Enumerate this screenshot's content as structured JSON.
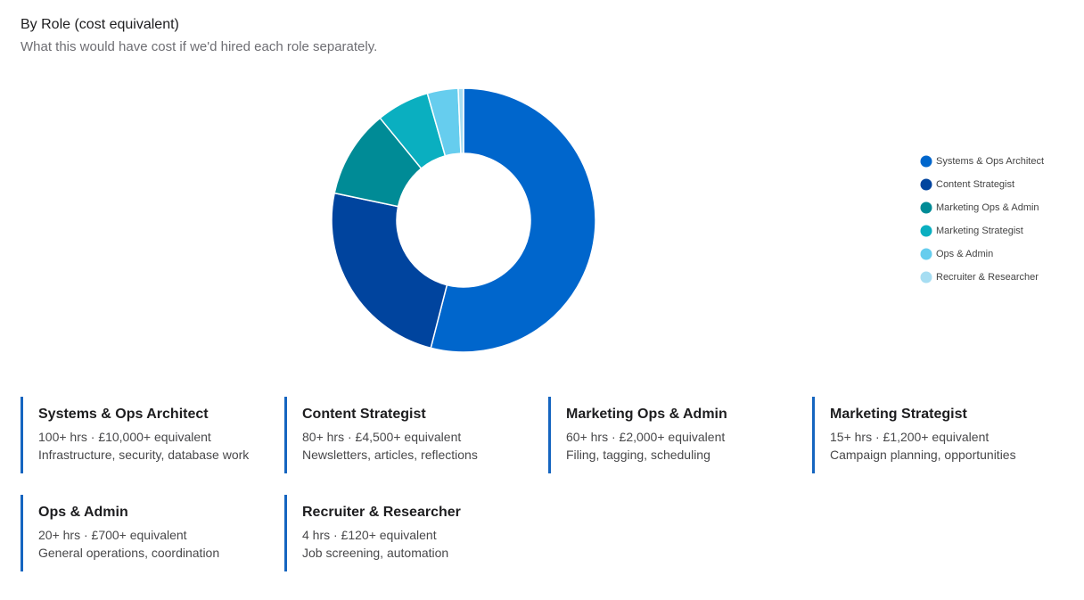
{
  "chart_data": {
    "type": "donut",
    "title": "By Role (cost equivalent)",
    "subtitle": "What this would have cost if we'd hired each role separately.",
    "categories": [
      "Systems & Ops Architect",
      "Content Strategist",
      "Marketing Ops & Admin",
      "Marketing Strategist",
      "Ops & Admin",
      "Recruiter & Researcher"
    ],
    "values": [
      10000,
      4500,
      2000,
      1200,
      700,
      120
    ],
    "colors": [
      "#0066cc",
      "#00449e",
      "#008b96",
      "#0aafc0",
      "#66cdee",
      "#a6ddf2"
    ],
    "legend": "right"
  },
  "cards": [
    {
      "title": "Systems & Ops Architect",
      "detail": "100+ hrs · £10,000+ equivalent",
      "description": "Infrastructure, security, database work"
    },
    {
      "title": "Content Strategist",
      "detail": "80+ hrs · £4,500+ equivalent",
      "description": "Newsletters, articles, reflections"
    },
    {
      "title": "Marketing Ops & Admin",
      "detail": "60+ hrs · £2,000+ equivalent",
      "description": "Filing, tagging, scheduling"
    },
    {
      "title": "Marketing Strategist",
      "detail": "15+ hrs · £1,200+ equivalent",
      "description": "Campaign planning, opportunities"
    },
    {
      "title": "Ops & Admin",
      "detail": "20+ hrs · £700+ equivalent",
      "description": "General operations, coordination"
    },
    {
      "title": "Recruiter & Researcher",
      "detail": "4 hrs · £120+ equivalent",
      "description": "Job screening, automation"
    }
  ]
}
